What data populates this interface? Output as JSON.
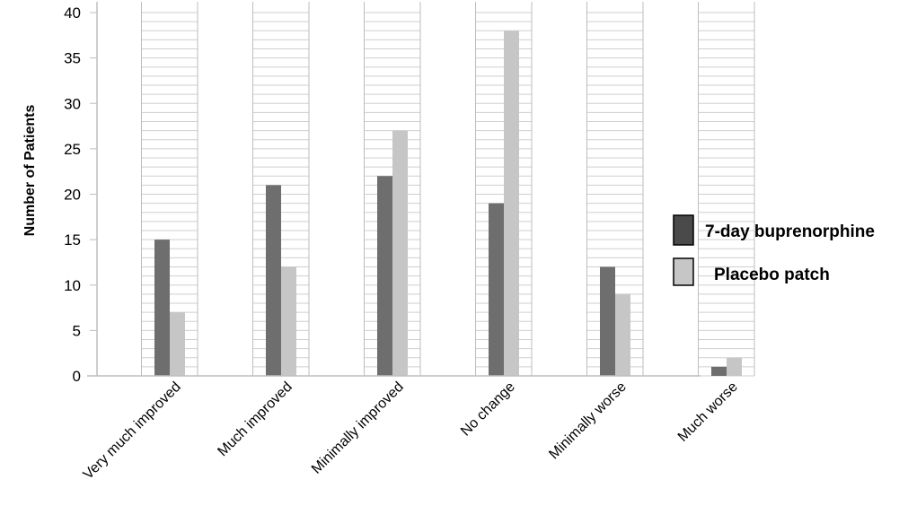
{
  "chart_data": {
    "type": "bar",
    "title": "",
    "xlabel": "",
    "ylabel": "Number of Patients",
    "ylim": [
      0,
      40
    ],
    "yticks": [
      0,
      5,
      10,
      15,
      20,
      25,
      30,
      35,
      40
    ],
    "grid": true,
    "legend_position": "right",
    "categories": [
      "Very much improved",
      "Much improved",
      "Minimally improved",
      "No change",
      "Minimally worse",
      "Much worse"
    ],
    "series": [
      {
        "name": "7-day buprenorphine",
        "color": "#6e6e6e",
        "values": [
          15,
          21,
          22,
          19,
          12,
          1
        ]
      },
      {
        "name": "Placebo patch",
        "color": "#c6c6c6",
        "values": [
          7,
          12,
          27,
          38,
          9,
          2
        ]
      }
    ]
  }
}
